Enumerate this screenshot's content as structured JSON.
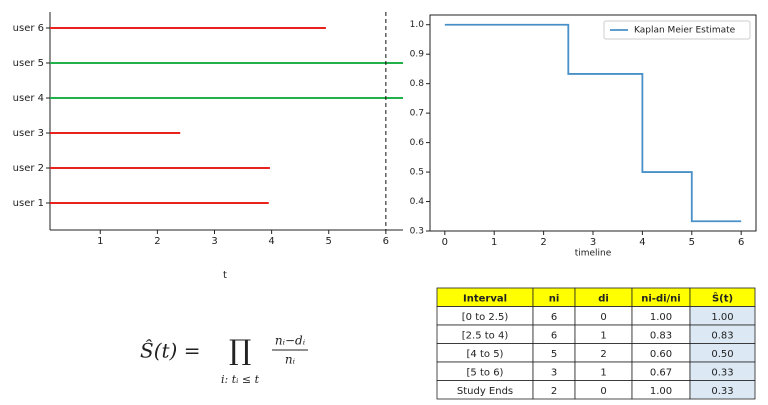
{
  "chart_data": [
    {
      "type": "lifeline",
      "categories": [
        "user 1",
        "user 2",
        "user 3",
        "user 4",
        "user 5",
        "user 6"
      ],
      "starts": [
        0,
        0,
        0,
        0,
        0,
        0
      ],
      "values": [
        3.95,
        3.97,
        2.4,
        6.5,
        6.5,
        4.95
      ],
      "colors": [
        "#e8221c",
        "#e8221c",
        "#e8221c",
        "#22b04b",
        "#22b04b",
        "#e8221c"
      ],
      "vline": 6,
      "xlabel": "t",
      "xlim": [
        0.12,
        6.3
      ],
      "xticks": [
        1,
        2,
        3,
        4,
        5,
        6
      ]
    },
    {
      "type": "step",
      "x": [
        0,
        2.5,
        4,
        5,
        6
      ],
      "series": [
        {
          "name": "Kaplan Meier Estimate",
          "color": "#4a90c8",
          "values": [
            1,
            0.833,
            0.5,
            0.333,
            0.333
          ]
        }
      ],
      "xlabel": "timeline",
      "xlim": [
        -0.3,
        6.3
      ],
      "xticks": [
        0,
        1,
        2,
        3,
        4,
        5,
        6
      ],
      "ylim": [
        0.3,
        1.033
      ],
      "yticks": [
        0.3,
        0.4,
        0.5,
        0.6,
        0.7,
        0.8,
        0.9,
        {
          "value": 1,
          "label": "1.0"
        }
      ],
      "legend": "upper-right"
    }
  ],
  "formula": {
    "lhs": "Ŝ(t) =",
    "product": "∏",
    "under": "i: tᵢ ≤ t",
    "numerator": "nᵢ−dᵢ",
    "denominator": "nᵢ"
  },
  "table": {
    "header": [
      "Interval",
      "ni",
      "di",
      "ni-di/ni",
      "Ŝ(t)"
    ],
    "rows": [
      [
        "[0 to 2.5)",
        "6",
        "0",
        "1.00",
        "1.00"
      ],
      [
        "[2.5 to 4)",
        "6",
        "1",
        "0.83",
        "0.83"
      ],
      [
        "[4 to 5)",
        "5",
        "2",
        "0.60",
        "0.50"
      ],
      [
        "[5 to 6)",
        "3",
        "1",
        "0.67",
        "0.33"
      ],
      [
        "Study Ends",
        "2",
        "0",
        "1.00",
        "0.33"
      ]
    ]
  }
}
